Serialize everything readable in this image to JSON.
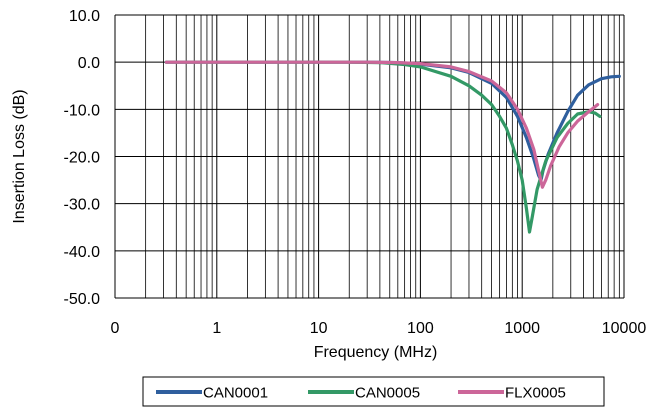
{
  "chart_data": {
    "type": "line",
    "title": "",
    "xlabel": "Frequency (MHz)",
    "ylabel": "Insertion Loss (dB)",
    "x_scale": "log",
    "xlim": [
      0.1,
      10000
    ],
    "ylim": [
      -50,
      10
    ],
    "x_ticks": [
      {
        "value": 0.1,
        "label": "0"
      },
      {
        "value": 1,
        "label": "1"
      },
      {
        "value": 10,
        "label": "10"
      },
      {
        "value": 100,
        "label": "100"
      },
      {
        "value": 1000,
        "label": "1000"
      },
      {
        "value": 10000,
        "label": "10000"
      }
    ],
    "y_ticks": [
      {
        "value": 10,
        "label": "10.0"
      },
      {
        "value": 0,
        "label": "0.0"
      },
      {
        "value": -10,
        "label": "-10.0"
      },
      {
        "value": -20,
        "label": "-20.0"
      },
      {
        "value": -30,
        "label": "-30.0"
      },
      {
        "value": -40,
        "label": "-40.0"
      },
      {
        "value": -50,
        "label": "-50.0"
      }
    ],
    "grid": true,
    "legend_position": "bottom",
    "series": [
      {
        "name": "CAN0001",
        "color": "#2f5f9e",
        "points": [
          [
            0.32,
            0
          ],
          [
            1,
            0
          ],
          [
            10,
            0
          ],
          [
            30,
            0
          ],
          [
            60,
            -0.1
          ],
          [
            100,
            -0.4
          ],
          [
            200,
            -1.2
          ],
          [
            300,
            -2.2
          ],
          [
            500,
            -4.5
          ],
          [
            700,
            -7.5
          ],
          [
            900,
            -11.5
          ],
          [
            1100,
            -16
          ],
          [
            1300,
            -20.5
          ],
          [
            1450,
            -24
          ],
          [
            1530,
            -25
          ],
          [
            1600,
            -23
          ],
          [
            1800,
            -19.5
          ],
          [
            2200,
            -15
          ],
          [
            2800,
            -10.5
          ],
          [
            3500,
            -7
          ],
          [
            4500,
            -4.8
          ],
          [
            6000,
            -3.5
          ],
          [
            7500,
            -3.1
          ],
          [
            9000,
            -3
          ]
        ]
      },
      {
        "name": "CAN0005",
        "color": "#339966",
        "points": [
          [
            0.32,
            0
          ],
          [
            1,
            0
          ],
          [
            10,
            0
          ],
          [
            20,
            0
          ],
          [
            40,
            -0.1
          ],
          [
            70,
            -0.5
          ],
          [
            100,
            -1
          ],
          [
            200,
            -3
          ],
          [
            300,
            -5
          ],
          [
            400,
            -7
          ],
          [
            500,
            -9
          ],
          [
            600,
            -11.5
          ],
          [
            700,
            -14
          ],
          [
            800,
            -17.5
          ],
          [
            900,
            -21
          ],
          [
            1000,
            -25
          ],
          [
            1100,
            -31
          ],
          [
            1180,
            -36
          ],
          [
            1250,
            -33
          ],
          [
            1400,
            -27
          ],
          [
            1700,
            -21
          ],
          [
            2200,
            -16
          ],
          [
            2800,
            -13
          ],
          [
            3500,
            -11
          ],
          [
            4500,
            -10.5
          ],
          [
            5200,
            -10.8
          ],
          [
            5800,
            -11.5
          ]
        ]
      },
      {
        "name": "FLX0005",
        "color": "#cc6699",
        "points": [
          [
            0.32,
            0
          ],
          [
            1,
            0
          ],
          [
            10,
            0
          ],
          [
            30,
            0
          ],
          [
            60,
            -0.1
          ],
          [
            100,
            -0.3
          ],
          [
            200,
            -1
          ],
          [
            300,
            -2
          ],
          [
            500,
            -4
          ],
          [
            700,
            -6.5
          ],
          [
            900,
            -10
          ],
          [
            1100,
            -14
          ],
          [
            1300,
            -18.5
          ],
          [
            1450,
            -23
          ],
          [
            1580,
            -26.5
          ],
          [
            1700,
            -25
          ],
          [
            1900,
            -22
          ],
          [
            2300,
            -18
          ],
          [
            2800,
            -15
          ],
          [
            3500,
            -12.5
          ],
          [
            4500,
            -10.5
          ],
          [
            5500,
            -9
          ]
        ]
      }
    ]
  }
}
